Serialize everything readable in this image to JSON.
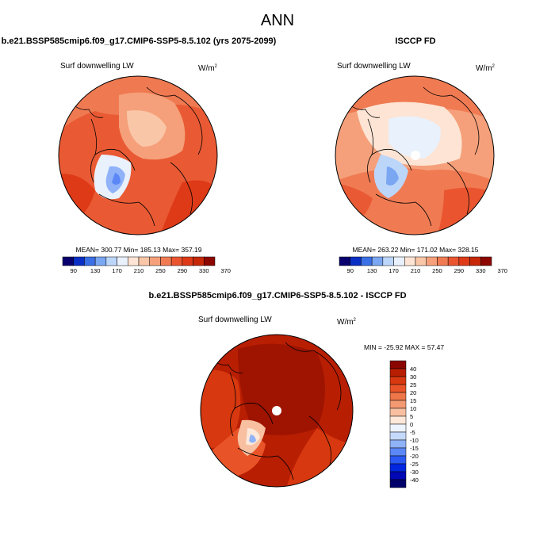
{
  "page_title": "ANN",
  "colors": {
    "abs_scale": [
      "#08006e",
      "#0a2fc4",
      "#3b6fe6",
      "#7aa6f2",
      "#bcd6fa",
      "#e8f1fc",
      "#fde4d4",
      "#f9c6a8",
      "#f5a07a",
      "#f07b53",
      "#ea5530",
      "#de3a18",
      "#c62808",
      "#8c0700"
    ],
    "diff_scale": [
      "#00006b",
      "#0007b4",
      "#0026e0",
      "#2a58f2",
      "#5b88f6",
      "#8fb2f8",
      "#c5d9fb",
      "#eef4fd",
      "#fde8d9",
      "#f8c0a0",
      "#f49a72",
      "#ee7649",
      "#e85428",
      "#d8380f",
      "#b81e02",
      "#8a0600"
    ]
  },
  "chart_data": [
    {
      "type": "heatmap",
      "projection": "north-polar-stereographic",
      "title": "b.e21.BSSP585cmip6.f09_g17.CMIP6-SSP5-8.5.102 (yrs 2075-2099)",
      "field_label": "Surf downwelling LW",
      "units_base": "W/m",
      "units_exp": "2",
      "stats_text": "MEAN= 300.77  Min= 185.13  Max= 357.19",
      "mean": 300.77,
      "min": 185.13,
      "max": 357.19,
      "colorbar": {
        "orientation": "horizontal",
        "levels": [
          90,
          110,
          130,
          150,
          170,
          190,
          210,
          230,
          250,
          270,
          290,
          310,
          330,
          350,
          370
        ],
        "tick_labels": [
          "90",
          "130",
          "170",
          "210",
          "250",
          "290",
          "330",
          "370"
        ]
      }
    },
    {
      "type": "heatmap",
      "projection": "north-polar-stereographic",
      "title": "ISCCP FD",
      "field_label": "Surf downwelling LW",
      "units_base": "W/m",
      "units_exp": "2",
      "stats_text": "MEAN= 263.22  Min= 171.02  Max= 328.15",
      "mean": 263.22,
      "min": 171.02,
      "max": 328.15,
      "colorbar": {
        "orientation": "horizontal",
        "levels": [
          90,
          110,
          130,
          150,
          170,
          190,
          210,
          230,
          250,
          270,
          290,
          310,
          330,
          350,
          370
        ],
        "tick_labels": [
          "90",
          "130",
          "170",
          "210",
          "250",
          "290",
          "330",
          "370"
        ]
      }
    },
    {
      "type": "heatmap",
      "projection": "north-polar-stereographic",
      "title": "b.e21.BSSP585cmip6.f09_g17.CMIP6-SSP5-8.5.102 - ISCCP FD",
      "field_label": "Surf downwelling LW",
      "units_base": "W/m",
      "units_exp": "2",
      "stats_text": "MIN = -25.92 MAX =  57.47",
      "min": -25.92,
      "max": 57.47,
      "colorbar": {
        "orientation": "vertical",
        "levels": [
          -40,
          -35,
          -30,
          -25,
          -20,
          -15,
          -10,
          -5,
          0,
          5,
          10,
          15,
          20,
          25,
          30,
          40
        ],
        "tick_labels": [
          "40",
          "30",
          "25",
          "20",
          "15",
          "10",
          "5",
          "0",
          "-5",
          "-10",
          "-15",
          "-20",
          "-25",
          "-30",
          "-40"
        ]
      }
    }
  ]
}
